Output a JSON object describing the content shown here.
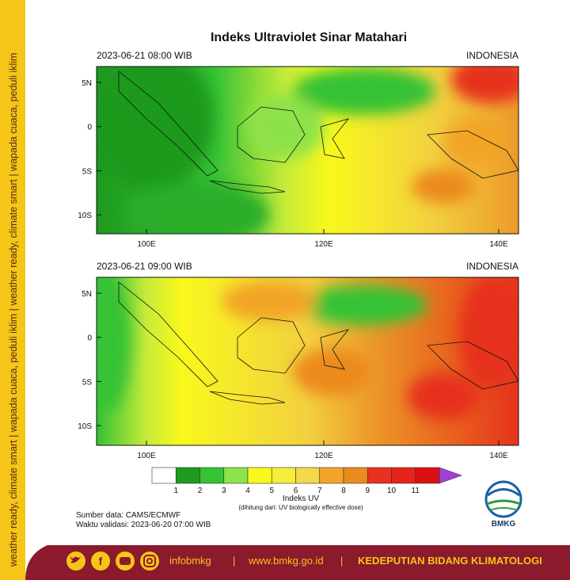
{
  "sidebar": {
    "text": "weather ready, climate smart | wapada cuaca, peduli iklim | weather ready, climate smart | wapada cuaca, peduli iklim"
  },
  "title": "Indeks Ultraviolet Sinar Matahari",
  "panels": [
    {
      "time": "2023-06-21  08:00 WIB",
      "region": "INDONESIA"
    },
    {
      "time": "2023-06-21  09:00 WIB",
      "region": "INDONESIA"
    }
  ],
  "lat_labels": [
    "5N",
    "0",
    "5S",
    "10S"
  ],
  "lon_labels": [
    "100E",
    "120E",
    "140E"
  ],
  "colorbar": {
    "labels": [
      "1",
      "2",
      "3",
      "4",
      "5",
      "6",
      "7",
      "8",
      "9",
      "10",
      "11"
    ],
    "colors": [
      "#ffffff",
      "#1e9a1e",
      "#35c235",
      "#8ee24a",
      "#f8f81c",
      "#f5ee3a",
      "#f3d84a",
      "#f2a428",
      "#ec8a1e",
      "#e6321e",
      "#e8221a",
      "#dc1010",
      "#a040d8"
    ],
    "title": "Indeks UV",
    "subtitle": "(dihitung dari: UV biologically effective dose)"
  },
  "source": "Sumber data: CAMS/ECMWF",
  "validation": "Waktu validasi: 2023-06-20 07:00 WIB",
  "logo": "BMKG",
  "footer": {
    "handle": "infobmkg",
    "sep1": "|",
    "url": "www.bmkg.go.id",
    "sep2": "|",
    "org": "KEDEPUTIAN BIDANG KLIMATOLOGI"
  }
}
